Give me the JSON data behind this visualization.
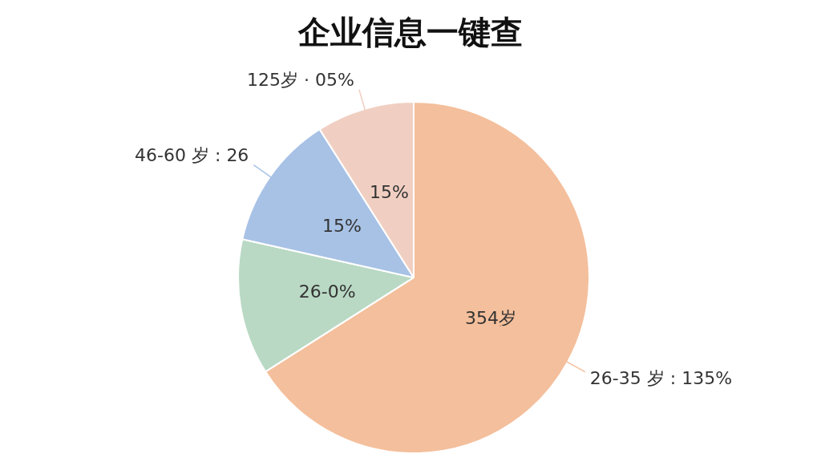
{
  "chart_data": {
    "type": "pie",
    "title": "企业信息一键查",
    "categories": [
      "26-35 岁 : 135%",
      null,
      "46-60 岁 : 26",
      "125岁 · 05%"
    ],
    "values": [
      66,
      12.5,
      12.5,
      9
    ],
    "colors": [
      "#f4bf9c",
      "#b9d9c4",
      "#a8c2e6",
      "#f0cfc2"
    ],
    "annotations": [
      "354岁",
      "26-0%",
      "15%",
      "15%"
    ]
  }
}
